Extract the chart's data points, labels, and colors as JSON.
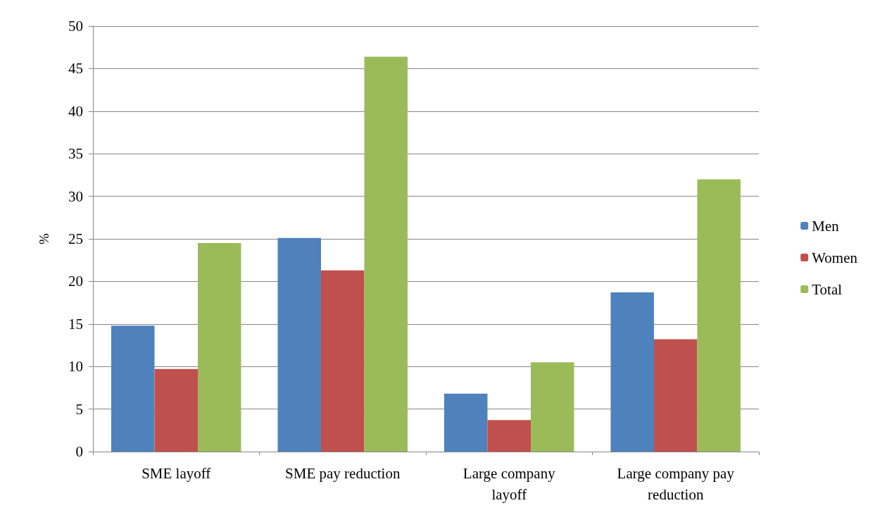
{
  "chart_data": {
    "type": "bar",
    "ylabel": "%",
    "categories": [
      "SME layoff",
      "SME pay reduction",
      "Large company\nlayoff",
      "Large company pay\nreduction"
    ],
    "series": [
      {
        "name": "Men",
        "color": "#4f81bd",
        "values": [
          14.8,
          25.1,
          6.8,
          18.7
        ]
      },
      {
        "name": "Women",
        "color": "#c0504d",
        "values": [
          9.7,
          21.3,
          3.7,
          13.2
        ]
      },
      {
        "name": "Total",
        "color": "#9bbb59",
        "values": [
          24.5,
          46.4,
          10.5,
          32.0
        ]
      }
    ],
    "ylim": [
      0,
      50
    ],
    "yticks": [
      0,
      5,
      10,
      15,
      20,
      25,
      30,
      35,
      40,
      45,
      50
    ],
    "grid": "y",
    "legend": "right"
  }
}
